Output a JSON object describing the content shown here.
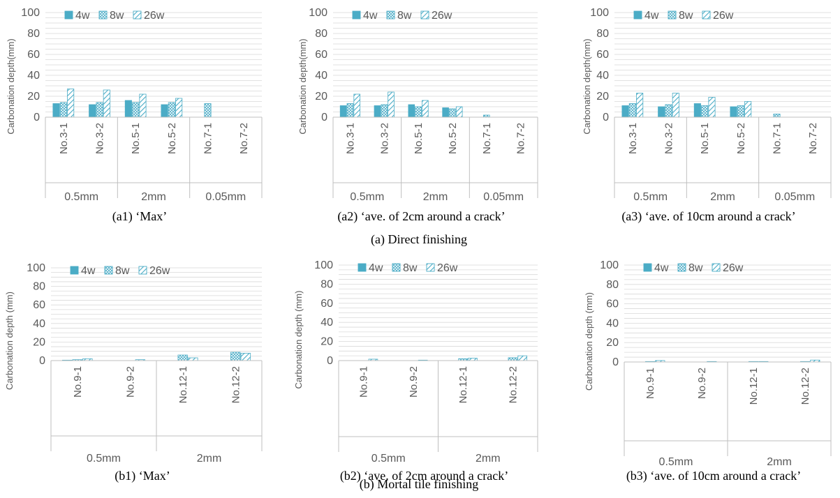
{
  "colors": {
    "bar": "#4bacc6",
    "axis": "#bfbfbf",
    "grid": "#d9d9d9",
    "text": "#595959"
  },
  "section_captions": [
    "(a) Direct finishing",
    "(b) Mortal tile finishing"
  ],
  "chart_data": [
    {
      "type": "bar",
      "caption": "(a1) ‘Max’",
      "ylabel": "Carbonation depth(mm)",
      "ylim": [
        0,
        100
      ],
      "yticks": [
        0,
        20,
        40,
        60,
        80,
        100
      ],
      "grid": true,
      "legend": "top-left",
      "categories": [
        "No.3-1",
        "No.3-2",
        "No.5-1",
        "No.5-2",
        "No.7-1",
        "No.7-2"
      ],
      "groups": [
        {
          "label": "0.5mm",
          "span": 2
        },
        {
          "label": "2mm",
          "span": 2
        },
        {
          "label": "0.05mm",
          "span": 2
        }
      ],
      "series": [
        {
          "name": "4w",
          "values": [
            13,
            12,
            16,
            12,
            0,
            0
          ]
        },
        {
          "name": "8w",
          "values": [
            14,
            14,
            14,
            14,
            13,
            0
          ]
        },
        {
          "name": "26w",
          "values": [
            27,
            26,
            22,
            18,
            0,
            0
          ]
        }
      ]
    },
    {
      "type": "bar",
      "caption": "(a2) ‘ave. of 2cm around a crack’",
      "ylabel": "Carbonation depth(mm)",
      "ylim": [
        0,
        100
      ],
      "yticks": [
        0,
        20,
        40,
        60,
        80,
        100
      ],
      "grid": true,
      "legend": "top-left",
      "categories": [
        "No.3-1",
        "No.3-2",
        "No.5-1",
        "No.5-2",
        "No.7-1",
        "No.7-2"
      ],
      "groups": [
        {
          "label": "0.5mm",
          "span": 2
        },
        {
          "label": "2mm",
          "span": 2
        },
        {
          "label": "0.05mm",
          "span": 2
        }
      ],
      "series": [
        {
          "name": "4w",
          "values": [
            11,
            11,
            12,
            9,
            0,
            0
          ]
        },
        {
          "name": "8w",
          "values": [
            13,
            12,
            10,
            8,
            2,
            0
          ]
        },
        {
          "name": "26w",
          "values": [
            22,
            24,
            16,
            10,
            0,
            0
          ]
        }
      ]
    },
    {
      "type": "bar",
      "caption": "(a3) ‘ave. of 10cm around a crack’",
      "ylabel": "Carbonation depth(mm)",
      "ylim": [
        0,
        100
      ],
      "yticks": [
        0,
        20,
        40,
        60,
        80,
        100
      ],
      "grid": true,
      "legend": "top-left",
      "categories": [
        "No.3-1",
        "No.3-2",
        "No.5-1",
        "No.5-2",
        "No.7-1",
        "No.7-2"
      ],
      "groups": [
        {
          "label": "0.5mm",
          "span": 2
        },
        {
          "label": "2mm",
          "span": 2
        },
        {
          "label": "0.05mm",
          "span": 2
        }
      ],
      "series": [
        {
          "name": "4w",
          "values": [
            11,
            10,
            13,
            10,
            0,
            0
          ]
        },
        {
          "name": "8w",
          "values": [
            13,
            12,
            11,
            11,
            3,
            0
          ]
        },
        {
          "name": "26w",
          "values": [
            23,
            23,
            19,
            15,
            0,
            0
          ]
        }
      ]
    },
    {
      "type": "bar",
      "caption": "(b1) ‘Max’",
      "ylabel": "Carbonation depth (mm)",
      "ylim": [
        0,
        100
      ],
      "yticks": [
        0,
        20,
        40,
        60,
        80,
        100
      ],
      "grid": true,
      "legend": "top-left",
      "categories": [
        "No.9-1",
        "No.9-2",
        "No.12-1",
        "No.12-2"
      ],
      "groups": [
        {
          "label": "0.5mm",
          "span": 2
        },
        {
          "label": "2mm",
          "span": 2
        }
      ],
      "series": [
        {
          "name": "4w",
          "values": [
            0.5,
            0,
            0,
            0
          ]
        },
        {
          "name": "8w",
          "values": [
            1,
            0,
            6,
            9
          ]
        },
        {
          "name": "26w",
          "values": [
            2,
            1,
            3,
            8
          ]
        }
      ]
    },
    {
      "type": "bar",
      "caption": "(b2) ‘ave. of 2cm around a crack’",
      "ylabel": "Carbonation depth (mm)",
      "ylim": [
        0,
        100
      ],
      "yticks": [
        0,
        20,
        40,
        60,
        80,
        100
      ],
      "grid": true,
      "legend": "top-left",
      "categories": [
        "No.9-1",
        "No.9-2",
        "No.12-1",
        "No.12-2"
      ],
      "groups": [
        {
          "label": "0.5mm",
          "span": 2
        },
        {
          "label": "2mm",
          "span": 2
        }
      ],
      "series": [
        {
          "name": "4w",
          "values": [
            0,
            0,
            0,
            0
          ]
        },
        {
          "name": "8w",
          "values": [
            0,
            0,
            2,
            3
          ]
        },
        {
          "name": "26w",
          "values": [
            1.5,
            0.5,
            2.5,
            5
          ]
        }
      ]
    },
    {
      "type": "bar",
      "caption": "(b3) ‘ave. of 10cm around a crack’",
      "ylabel": "Carbonation depth (mm)",
      "ylim": [
        0,
        100
      ],
      "yticks": [
        0,
        20,
        40,
        60,
        80,
        100
      ],
      "grid": true,
      "legend": "top-left",
      "categories": [
        "No.9-1",
        "No.9-2",
        "No.12-1",
        "No.12-2"
      ],
      "groups": [
        {
          "label": "0.5mm",
          "span": 2
        },
        {
          "label": "2mm",
          "span": 2
        }
      ],
      "series": [
        {
          "name": "4w",
          "values": [
            0,
            0,
            0,
            0
          ]
        },
        {
          "name": "8w",
          "values": [
            0.5,
            0,
            0.5,
            0.5
          ]
        },
        {
          "name": "26w",
          "values": [
            1.5,
            0.5,
            0.5,
            2
          ]
        }
      ]
    }
  ]
}
